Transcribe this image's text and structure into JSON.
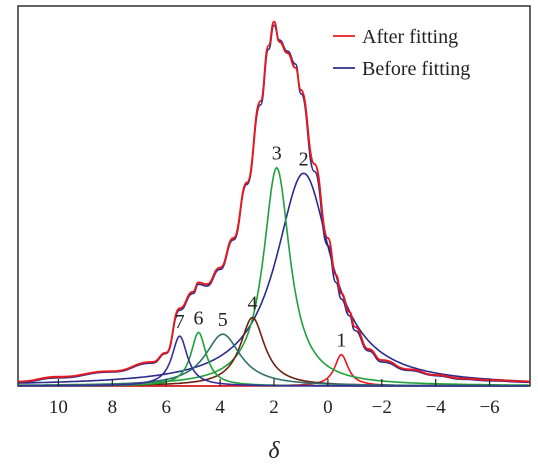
{
  "chart_data": {
    "type": "line",
    "title": "",
    "xlabel": "δ",
    "ylabel": "",
    "x_reversed": true,
    "xlim": [
      11.5,
      -7.5
    ],
    "ylim": [
      0,
      1.0
    ],
    "x_ticks": [
      10,
      8,
      6,
      4,
      2,
      0,
      -2,
      -4,
      -6
    ],
    "x_tick_labels": [
      "10",
      "8",
      "6",
      "4",
      "2",
      "0",
      "−2",
      "−4",
      "−6"
    ],
    "y_axis_visible": false,
    "legend": {
      "position": "top-right",
      "entries": [
        {
          "label": "After fitting",
          "color": "#e8191e"
        },
        {
          "label": "Before fitting",
          "color": "#2b2b8c"
        }
      ]
    },
    "peaks": [
      {
        "label": "1",
        "center": -0.5,
        "height": 0.085,
        "width": 0.3,
        "color": "#e8191e"
      },
      {
        "label": "2",
        "center": 0.9,
        "height": 0.575,
        "width": 1.25,
        "color": "#2b2b8c"
      },
      {
        "label": "3",
        "center": 1.9,
        "height": 0.59,
        "width": 0.6,
        "color": "#1fa13a"
      },
      {
        "label": "4",
        "center": 2.8,
        "height": 0.185,
        "width": 0.55,
        "color": "#6b2210"
      },
      {
        "label": "5",
        "center": 3.9,
        "height": 0.14,
        "width": 0.8,
        "color": "#2f6f6f"
      },
      {
        "label": "6",
        "center": 4.8,
        "height": 0.145,
        "width": 0.35,
        "color": "#1fa13a"
      },
      {
        "label": "7",
        "center": 5.5,
        "height": 0.135,
        "width": 0.35,
        "color": "#3a2e9a"
      }
    ],
    "series": [
      {
        "name": "After fitting",
        "color": "#e8191e",
        "x": [
          11.5,
          10,
          8,
          6.5,
          6,
          5.5,
          5,
          4.8,
          4.5,
          4,
          3.5,
          3,
          2.5,
          2.2,
          2,
          1.8,
          1.5,
          1.2,
          1,
          0.5,
          0,
          -0.3,
          -0.5,
          -0.8,
          -1,
          -1.5,
          -2,
          -3,
          -4,
          -5,
          -6,
          -7.5
        ],
        "y": [
          0.012,
          0.025,
          0.04,
          0.065,
          0.09,
          0.21,
          0.255,
          0.28,
          0.275,
          0.32,
          0.4,
          0.55,
          0.77,
          0.92,
          0.985,
          0.93,
          0.9,
          0.86,
          0.8,
          0.6,
          0.4,
          0.3,
          0.25,
          0.2,
          0.16,
          0.1,
          0.07,
          0.045,
          0.03,
          0.02,
          0.016,
          0.012
        ]
      },
      {
        "name": "Before fitting",
        "color": "#2b2b8c",
        "x": [
          11.5,
          10,
          8,
          6.5,
          6,
          5.5,
          5,
          4.8,
          4.5,
          4,
          3.5,
          3,
          2.5,
          2.2,
          2,
          1.8,
          1.5,
          1.2,
          1,
          0.5,
          0,
          -0.3,
          -0.5,
          -0.8,
          -1,
          -1.5,
          -2,
          -3,
          -4,
          -5,
          -6,
          -7.5
        ],
        "y": [
          0.01,
          0.022,
          0.038,
          0.062,
          0.088,
          0.205,
          0.25,
          0.275,
          0.27,
          0.315,
          0.395,
          0.545,
          0.76,
          0.91,
          0.975,
          0.935,
          0.905,
          0.87,
          0.79,
          0.58,
          0.38,
          0.28,
          0.235,
          0.19,
          0.15,
          0.095,
          0.065,
          0.042,
          0.028,
          0.018,
          0.014,
          0.01
        ]
      }
    ]
  }
}
